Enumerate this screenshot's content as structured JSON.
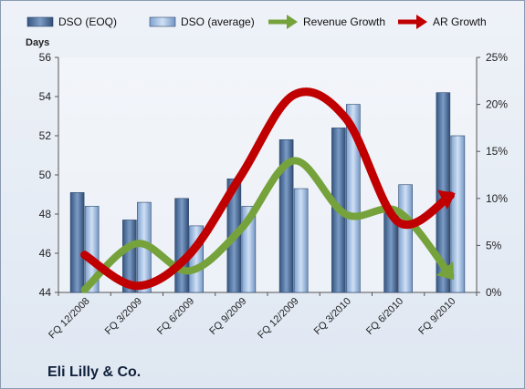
{
  "company_name": "Eli Lilly & Co.",
  "chart_data": {
    "type": "bar+line",
    "categories": [
      "FQ 12/2008",
      "FQ 3/2009",
      "FQ 6/2009",
      "FQ 9/2009",
      "FQ 12/2009",
      "FQ 3/2010",
      "FQ 6/2010",
      "FQ 9/2010"
    ],
    "left_axis": {
      "title": "Days",
      "ylim": [
        44,
        56
      ],
      "ticks": [
        44,
        46,
        48,
        50,
        52,
        54,
        56
      ]
    },
    "right_axis": {
      "ylim": [
        0,
        25
      ],
      "ticks": [
        "0%",
        "5%",
        "10%",
        "15%",
        "20%",
        "25%"
      ]
    },
    "bar_series": [
      {
        "name": "DSO (EOQ)",
        "color": "#4a6fa0",
        "values": [
          49.1,
          47.7,
          48.8,
          49.8,
          51.8,
          52.4,
          48.2,
          54.2
        ]
      },
      {
        "name": "DSO (average)",
        "color": "#8fb1dd",
        "values": [
          48.4,
          48.6,
          47.4,
          48.4,
          49.3,
          53.6,
          49.5,
          52.0
        ]
      }
    ],
    "line_series": [
      {
        "name": "Revenue Growth",
        "color": "#76a23c",
        "values_pct": [
          0.3,
          5.2,
          2.3,
          6.8,
          14.0,
          8.3,
          8.6,
          1.8
        ]
      },
      {
        "name": "AR Growth",
        "color": "#c00000",
        "values_pct": [
          4.0,
          0.7,
          4.0,
          12.5,
          21.0,
          18.5,
          7.5,
          10.3
        ]
      }
    ],
    "legend_position": "top",
    "grid": false
  }
}
